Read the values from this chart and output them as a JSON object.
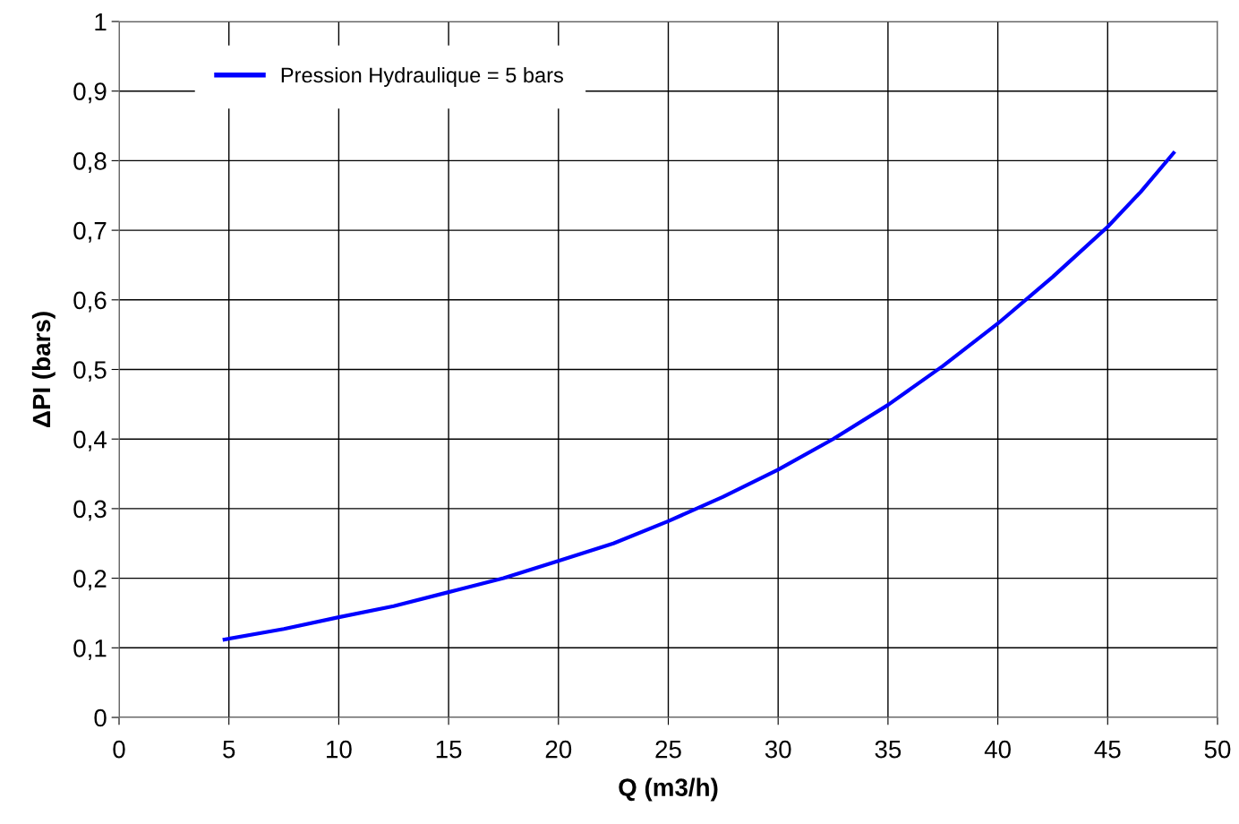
{
  "chart_data": {
    "type": "line",
    "xlabel": "Q (m3/h)",
    "ylabel": "ΔPI (bars)",
    "series": [
      {
        "name": "Pression Hydraulique = 5 bars",
        "color": "#0000ff",
        "x": [
          4.8,
          7.5,
          10,
          12.5,
          15,
          17.5,
          20,
          22.5,
          25,
          27.5,
          30,
          32.5,
          35,
          37.5,
          40,
          42.5,
          45,
          46.5,
          48
        ],
        "values": [
          0.112,
          0.127,
          0.144,
          0.16,
          0.18,
          0.2,
          0.225,
          0.25,
          0.282,
          0.317,
          0.356,
          0.4,
          0.449,
          0.505,
          0.566,
          0.633,
          0.705,
          0.755,
          0.811
        ]
      }
    ],
    "xlim": [
      0,
      50
    ],
    "xticks": [
      0,
      5,
      10,
      15,
      20,
      25,
      30,
      35,
      40,
      45,
      50
    ],
    "ylim": [
      0,
      1
    ],
    "yticks": [
      0,
      {
        "value": 0.1,
        "label": "0,1"
      },
      {
        "value": 0.2,
        "label": "0,2"
      },
      {
        "value": 0.3,
        "label": "0,3"
      },
      {
        "value": 0.4,
        "label": "0,4"
      },
      {
        "value": 0.5,
        "label": "0,5"
      },
      {
        "value": 0.6,
        "label": "0,6"
      },
      {
        "value": 0.7,
        "label": "0,7"
      },
      {
        "value": 0.8,
        "label": "0,8"
      },
      {
        "value": 0.9,
        "label": "0,9"
      },
      1
    ],
    "grid": true,
    "legend": "top left",
    "marker": "none",
    "line_style": "solid"
  }
}
